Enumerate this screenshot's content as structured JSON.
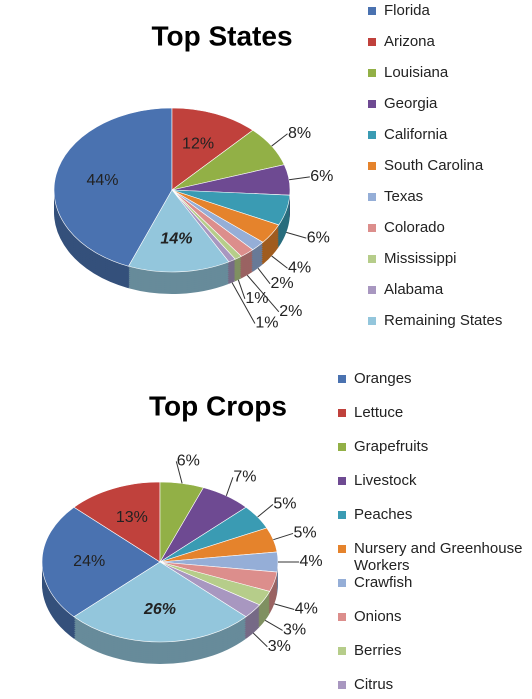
{
  "chart_data": [
    {
      "type": "pie",
      "title": "Top States",
      "categories": [
        "Florida",
        "Arizona",
        "Louisiana",
        "Georgia",
        "California",
        "South Carolina",
        "Texas",
        "Colorado",
        "Mississippi",
        "Alabama",
        "Remaining States"
      ],
      "values": [
        44,
        12,
        8,
        6,
        6,
        4,
        2,
        2,
        1,
        1,
        14
      ],
      "value_labels": [
        "44%",
        "12%",
        "8%",
        "6%",
        "6%",
        "4%",
        "2%",
        "2%",
        "1%",
        "1%",
        "14%"
      ],
      "colors": [
        "#4a72b0",
        "#c0413c",
        "#92b046",
        "#6e4a92",
        "#3a9bb3",
        "#e5832c",
        "#95aed7",
        "#dc8e8c",
        "#b6cd8a",
        "#a897c0",
        "#93c6dc"
      ],
      "legend": "right"
    },
    {
      "type": "pie",
      "title": "Top Crops",
      "categories": [
        "Oranges",
        "Lettuce",
        "Grapefruits",
        "Livestock",
        "Peaches",
        "Nursery and Greenhouse Workers",
        "Crawfish",
        "Onions",
        "Berries",
        "Citrus",
        null
      ],
      "values": [
        24,
        13,
        6,
        7,
        5,
        5,
        4,
        4,
        3,
        3,
        26
      ],
      "value_labels": [
        "24%",
        "13%",
        "6%",
        "7%",
        "5%",
        "5%",
        "4%",
        "4%",
        "3%",
        "3%",
        "26%"
      ],
      "colors": [
        "#4a72b0",
        "#c0413c",
        "#92b046",
        "#6e4a92",
        "#3a9bb3",
        "#e5832c",
        "#95aed7",
        "#dc8e8c",
        "#b6cd8a",
        "#a897c0",
        "#93c6dc"
      ],
      "legend": "right"
    }
  ]
}
